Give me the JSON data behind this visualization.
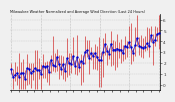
{
  "title": "Milwaukee Weather Normalized and Average Wind Direction (Last 24 Hours)",
  "n_points": 75,
  "background_color": "#f0f0f0",
  "plot_bg_color": "#f0f0f0",
  "bar_color": "#cc0000",
  "line_color": "#0000cc",
  "grid_color": "#aaaaaa",
  "y_min": -0.5,
  "y_max": 6.5,
  "y_ticks": [
    0,
    1,
    2,
    3,
    4,
    5,
    6
  ],
  "seed": 7,
  "n_vgrid": 6,
  "bar_lw": 0.4,
  "line_lw": 0.5,
  "marker_size": 0.7
}
